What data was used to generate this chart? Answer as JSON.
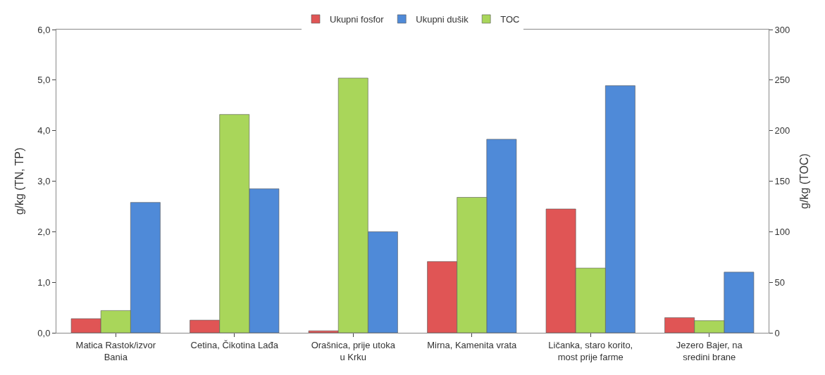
{
  "chart_data": {
    "type": "bar",
    "categories": [
      "Matica Rastok/izvor Bania",
      "Cetina, Čikotina Lađa",
      "Orašnica, prije utoka u Krku",
      "Mirna, Kamenita vrata",
      "Ličanka, staro korito, most prije farme",
      "Jezero Bajer, na sredini brane"
    ],
    "series": [
      {
        "name": "Ukupni fosfor",
        "color": "#e05555",
        "values": [
          0.28,
          0.25,
          0.04,
          1.41,
          2.45,
          0.3
        ]
      },
      {
        "name": "TOC",
        "color": "#a9d65a",
        "axis": "y2",
        "values": [
          22,
          216,
          252,
          134,
          64,
          12
        ]
      },
      {
        "name": "Ukupni dušik",
        "color": "#4f8ad8",
        "values": [
          2.58,
          2.85,
          2.0,
          3.83,
          4.89,
          1.2
        ]
      }
    ],
    "ylabel": "g/kg (TN, TP)",
    "y2label": "g/kg (TOC)",
    "ylim": [
      0,
      6
    ],
    "yticks": [
      {
        "value": 0,
        "label": "0,0"
      },
      {
        "value": 1,
        "label": "1,0"
      },
      {
        "value": 2,
        "label": "2,0"
      },
      {
        "value": 3,
        "label": "3,0"
      },
      {
        "value": 4,
        "label": "4,0"
      },
      {
        "value": 5,
        "label": "5,0"
      },
      {
        "value": 6,
        "label": "6,0"
      }
    ],
    "y2lim": [
      0,
      300
    ],
    "y2ticks": [
      0,
      50,
      100,
      150,
      200,
      250,
      300
    ],
    "legend": "top",
    "grid": false
  }
}
